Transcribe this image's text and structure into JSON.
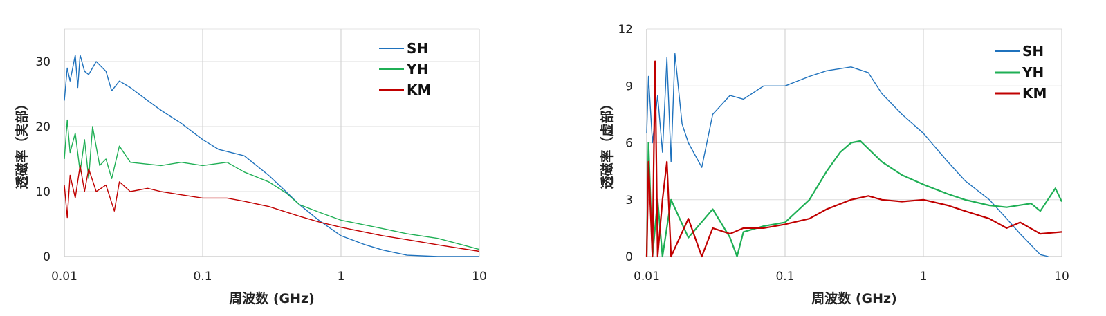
{
  "chart_data": [
    {
      "type": "line",
      "xlabel": "周波数 (GHz)",
      "ylabel": "透磁率（実部）",
      "xscale": "log",
      "xlim": [
        0.01,
        10
      ],
      "ylim": [
        0,
        35
      ],
      "xticks": [
        0.01,
        0.1,
        1,
        10
      ],
      "xtick_labels": [
        "0.01",
        "0.1",
        "1",
        "10"
      ],
      "yticks": [
        0,
        10,
        20,
        30
      ],
      "ytick_labels": [
        "0",
        "10",
        "20",
        "30"
      ],
      "grid": true,
      "legend": "top-right",
      "series": [
        {
          "name": "SH",
          "color": "#1f72bd",
          "x": [
            0.01,
            0.0105,
            0.011,
            0.012,
            0.0125,
            0.013,
            0.014,
            0.015,
            0.017,
            0.02,
            0.022,
            0.025,
            0.03,
            0.04,
            0.05,
            0.07,
            0.1,
            0.13,
            0.2,
            0.3,
            0.4,
            0.5,
            0.7,
            1,
            1.5,
            2,
            3,
            5,
            10
          ],
          "y": [
            24,
            29,
            27,
            31,
            26,
            31,
            28.5,
            28,
            30,
            28.5,
            25.5,
            27,
            26,
            24,
            22.5,
            20.5,
            18,
            16.5,
            15.5,
            12.5,
            10,
            8,
            5.5,
            3.2,
            1.8,
            1,
            0.2,
            0,
            0
          ]
        },
        {
          "name": "YH",
          "color": "#1faf55",
          "x": [
            0.01,
            0.0105,
            0.011,
            0.012,
            0.013,
            0.014,
            0.015,
            0.016,
            0.018,
            0.02,
            0.022,
            0.025,
            0.03,
            0.05,
            0.07,
            0.1,
            0.15,
            0.2,
            0.3,
            0.4,
            0.5,
            0.7,
            1,
            2,
            3,
            5,
            10
          ],
          "y": [
            15,
            21,
            16,
            19,
            13,
            18,
            12,
            20,
            14,
            15,
            12,
            17,
            14.5,
            14,
            14.5,
            14,
            14.5,
            13,
            11.5,
            9.8,
            8,
            6.8,
            5.6,
            4.3,
            3.5,
            2.8,
            1.1
          ]
        },
        {
          "name": "KM",
          "color": "#c00000",
          "x": [
            0.01,
            0.0105,
            0.011,
            0.012,
            0.013,
            0.014,
            0.015,
            0.017,
            0.02,
            0.023,
            0.025,
            0.03,
            0.04,
            0.05,
            0.07,
            0.1,
            0.15,
            0.2,
            0.3,
            0.5,
            0.7,
            1,
            2,
            3,
            5,
            10
          ],
          "y": [
            11,
            6,
            12.5,
            9,
            14,
            10,
            13.5,
            10,
            11,
            7,
            11.5,
            10,
            10.5,
            10,
            9.5,
            9,
            9,
            8.5,
            7.7,
            6.2,
            5.3,
            4.5,
            3.2,
            2.6,
            1.8,
            0.8
          ]
        }
      ]
    },
    {
      "type": "line",
      "xlabel": "周波数 (GHz)",
      "ylabel": "透磁率（虚部）",
      "xscale": "log",
      "xlim": [
        0.01,
        10
      ],
      "ylim": [
        0,
        12
      ],
      "xticks": [
        0.01,
        0.1,
        1,
        10
      ],
      "xtick_labels": [
        "0.01",
        "0.1",
        "1",
        "10"
      ],
      "yticks": [
        0,
        3,
        6,
        9,
        12
      ],
      "ytick_labels": [
        "0",
        "3",
        "6",
        "9",
        "12"
      ],
      "grid": true,
      "legend": "top-right",
      "series": [
        {
          "name": "SH",
          "color": "#1f72bd",
          "x": [
            0.01,
            0.0103,
            0.011,
            0.012,
            0.013,
            0.014,
            0.015,
            0.016,
            0.018,
            0.02,
            0.025,
            0.03,
            0.04,
            0.05,
            0.07,
            0.1,
            0.15,
            0.2,
            0.3,
            0.4,
            0.5,
            0.7,
            1,
            1.5,
            2,
            3,
            4,
            5,
            7,
            8
          ],
          "y": [
            6.5,
            9.5,
            6,
            8.5,
            5.5,
            10.5,
            5,
            10.7,
            7,
            6,
            4.7,
            7.5,
            8.5,
            8.3,
            9,
            9,
            9.5,
            9.8,
            10,
            9.7,
            8.6,
            7.5,
            6.5,
            5,
            4,
            3,
            2,
            1.2,
            0.1,
            0
          ]
        },
        {
          "name": "YH",
          "color": "#1faf55",
          "x": [
            0.01,
            0.0103,
            0.011,
            0.012,
            0.013,
            0.015,
            0.02,
            0.03,
            0.04,
            0.045,
            0.05,
            0.07,
            0.1,
            0.15,
            0.2,
            0.25,
            0.3,
            0.35,
            0.5,
            0.7,
            1,
            1.5,
            2,
            3,
            4,
            6,
            7,
            9,
            10
          ],
          "y": [
            0,
            6,
            0,
            3,
            0,
            3,
            1,
            2.5,
            1,
            0,
            1.3,
            1.6,
            1.8,
            3,
            4.5,
            5.5,
            6,
            6.1,
            5,
            4.3,
            3.8,
            3.3,
            3,
            2.7,
            2.6,
            2.8,
            2.4,
            3.6,
            2.9
          ]
        },
        {
          "name": "KM",
          "color": "#c00000",
          "x": [
            0.01,
            0.0103,
            0.011,
            0.0115,
            0.012,
            0.013,
            0.014,
            0.015,
            0.02,
            0.025,
            0.03,
            0.04,
            0.05,
            0.07,
            0.1,
            0.15,
            0.2,
            0.3,
            0.4,
            0.5,
            0.7,
            1,
            1.5,
            2,
            3,
            4,
            5,
            7,
            10
          ],
          "y": [
            0,
            5,
            0,
            10.3,
            0,
            3,
            5,
            0,
            2,
            0,
            1.5,
            1.2,
            1.5,
            1.5,
            1.7,
            2,
            2.5,
            3,
            3.2,
            3,
            2.9,
            3,
            2.7,
            2.4,
            2,
            1.5,
            1.8,
            1.2,
            1.3
          ]
        }
      ]
    }
  ]
}
